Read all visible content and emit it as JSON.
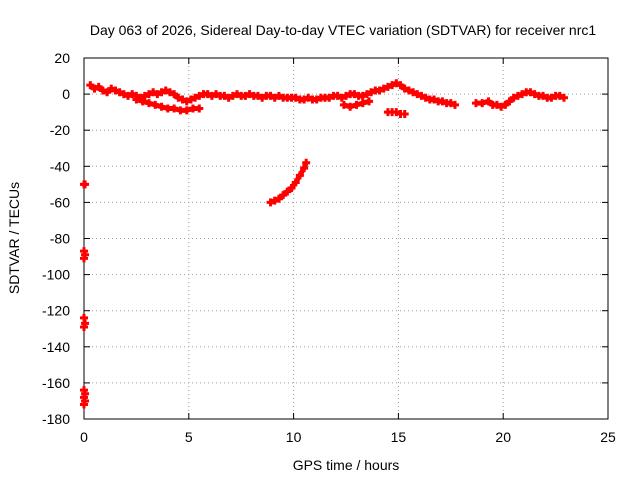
{
  "chart_data": {
    "type": "scatter",
    "title": "Day 063 of 2026, Sidereal Day-to-day VTEC variation (SDTVAR) for receiver nrc1",
    "xlabel": "GPS time / hours",
    "ylabel": "SDTVAR / TECUs",
    "xlim": [
      0,
      25
    ],
    "ylim": [
      -180,
      20
    ],
    "xticks": [
      0,
      5,
      10,
      15,
      20,
      25
    ],
    "yticks": [
      20,
      0,
      -20,
      -40,
      -60,
      -80,
      -100,
      -120,
      -140,
      -160,
      -180
    ],
    "grid": true,
    "marker_color": "#ff0000",
    "series": [
      {
        "name": "main-band",
        "points": [
          [
            0.3,
            5
          ],
          [
            0.5,
            3
          ],
          [
            0.7,
            4
          ],
          [
            0.9,
            2
          ],
          [
            1.1,
            1
          ],
          [
            1.3,
            3
          ],
          [
            1.5,
            2
          ],
          [
            1.7,
            1
          ],
          [
            1.9,
            0
          ],
          [
            2.1,
            -1
          ],
          [
            2.3,
            0
          ],
          [
            2.5,
            -1
          ],
          [
            2.7,
            -2
          ],
          [
            2.9,
            -1
          ],
          [
            3.1,
            0
          ],
          [
            3.3,
            1
          ],
          [
            3.5,
            0
          ],
          [
            3.7,
            1
          ],
          [
            3.9,
            2
          ],
          [
            4.1,
            1
          ],
          [
            4.3,
            0
          ],
          [
            4.5,
            -2
          ],
          [
            4.7,
            -3
          ],
          [
            4.9,
            -4
          ],
          [
            5.1,
            -3
          ],
          [
            5.3,
            -2
          ],
          [
            5.5,
            -1
          ],
          [
            5.7,
            0
          ],
          [
            5.9,
            0
          ],
          [
            6.1,
            -1
          ],
          [
            6.3,
            0
          ],
          [
            6.5,
            -1
          ],
          [
            6.7,
            -1
          ],
          [
            6.9,
            -2
          ],
          [
            7.1,
            -1
          ],
          [
            7.3,
            0
          ],
          [
            7.5,
            -1
          ],
          [
            7.7,
            -1
          ],
          [
            7.9,
            0
          ],
          [
            8.1,
            -1
          ],
          [
            8.3,
            -1
          ],
          [
            8.5,
            -2
          ],
          [
            8.7,
            -1
          ],
          [
            8.9,
            -1
          ],
          [
            9.1,
            -2
          ],
          [
            9.3,
            -1
          ],
          [
            9.5,
            -2
          ],
          [
            9.7,
            -2
          ],
          [
            9.9,
            -2
          ],
          [
            10.1,
            -2
          ],
          [
            10.3,
            -3
          ],
          [
            10.5,
            -3
          ],
          [
            10.7,
            -2
          ],
          [
            10.9,
            -3
          ],
          [
            11.1,
            -3
          ],
          [
            11.3,
            -2
          ],
          [
            11.5,
            -2
          ],
          [
            11.7,
            -2
          ],
          [
            11.9,
            -1
          ],
          [
            12.1,
            -1
          ],
          [
            12.3,
            -2
          ],
          [
            12.5,
            -1
          ],
          [
            12.7,
            0
          ],
          [
            12.9,
            0
          ],
          [
            13.1,
            -1
          ],
          [
            13.3,
            -1
          ],
          [
            13.5,
            0
          ],
          [
            13.7,
            1
          ],
          [
            13.9,
            2
          ],
          [
            14.1,
            2
          ],
          [
            14.3,
            3
          ],
          [
            14.5,
            4
          ],
          [
            14.7,
            5
          ],
          [
            14.9,
            6
          ],
          [
            15.1,
            5
          ],
          [
            15.3,
            3
          ],
          [
            15.5,
            2
          ],
          [
            15.7,
            1
          ],
          [
            15.9,
            0
          ],
          [
            16.1,
            -1
          ],
          [
            16.3,
            -2
          ],
          [
            16.5,
            -3
          ],
          [
            16.7,
            -3
          ],
          [
            16.9,
            -4
          ],
          [
            17.1,
            -4
          ],
          [
            17.3,
            -5
          ],
          [
            17.5,
            -5
          ],
          [
            17.7,
            -6
          ],
          [
            18.7,
            -5
          ],
          [
            19.0,
            -5
          ],
          [
            19.3,
            -4
          ],
          [
            19.5,
            -6
          ],
          [
            19.7,
            -6
          ],
          [
            19.9,
            -7
          ],
          [
            20.1,
            -6
          ],
          [
            20.3,
            -4
          ],
          [
            20.5,
            -2
          ],
          [
            20.7,
            -1
          ],
          [
            20.9,
            0
          ],
          [
            21.1,
            1
          ],
          [
            21.3,
            1
          ],
          [
            21.5,
            0
          ],
          [
            21.7,
            -1
          ],
          [
            21.9,
            -1
          ],
          [
            22.1,
            -2
          ],
          [
            22.3,
            -2
          ],
          [
            22.5,
            -1
          ],
          [
            22.7,
            -1
          ],
          [
            22.9,
            -2
          ]
        ]
      },
      {
        "name": "lower-dip-arc",
        "points": [
          [
            2.5,
            -3
          ],
          [
            2.8,
            -4
          ],
          [
            3.1,
            -5
          ],
          [
            3.4,
            -6
          ],
          [
            3.7,
            -7
          ],
          [
            4.0,
            -8
          ],
          [
            4.3,
            -8
          ],
          [
            4.6,
            -9
          ],
          [
            4.9,
            -9
          ],
          [
            5.2,
            -8
          ],
          [
            5.5,
            -8
          ],
          [
            12.4,
            -6
          ],
          [
            12.7,
            -7
          ],
          [
            13.0,
            -6
          ],
          [
            13.3,
            -5
          ],
          [
            13.6,
            -4
          ]
        ]
      },
      {
        "name": "detached-segment",
        "points": [
          [
            14.5,
            -10
          ],
          [
            14.7,
            -10
          ],
          [
            14.9,
            -10
          ],
          [
            15.1,
            -11
          ],
          [
            15.3,
            -11
          ]
        ]
      },
      {
        "name": "rising-arc",
        "points": [
          [
            8.9,
            -60
          ],
          [
            9.1,
            -59
          ],
          [
            9.3,
            -58
          ],
          [
            9.5,
            -56
          ],
          [
            9.7,
            -54
          ],
          [
            9.9,
            -52
          ],
          [
            10.1,
            -49
          ],
          [
            10.3,
            -45
          ],
          [
            10.5,
            -41
          ],
          [
            10.6,
            -38
          ]
        ]
      },
      {
        "name": "left-edge-clusters",
        "points": [
          [
            0.0,
            -50
          ],
          [
            0.05,
            -50
          ],
          [
            0.0,
            -87
          ],
          [
            0.05,
            -89
          ],
          [
            0.0,
            -91
          ],
          [
            0.0,
            -124
          ],
          [
            0.05,
            -127
          ],
          [
            0.0,
            -129
          ],
          [
            0.0,
            -164
          ],
          [
            0.05,
            -166
          ],
          [
            0.0,
            -168
          ],
          [
            0.05,
            -170
          ],
          [
            0.0,
            -172
          ]
        ]
      }
    ]
  }
}
